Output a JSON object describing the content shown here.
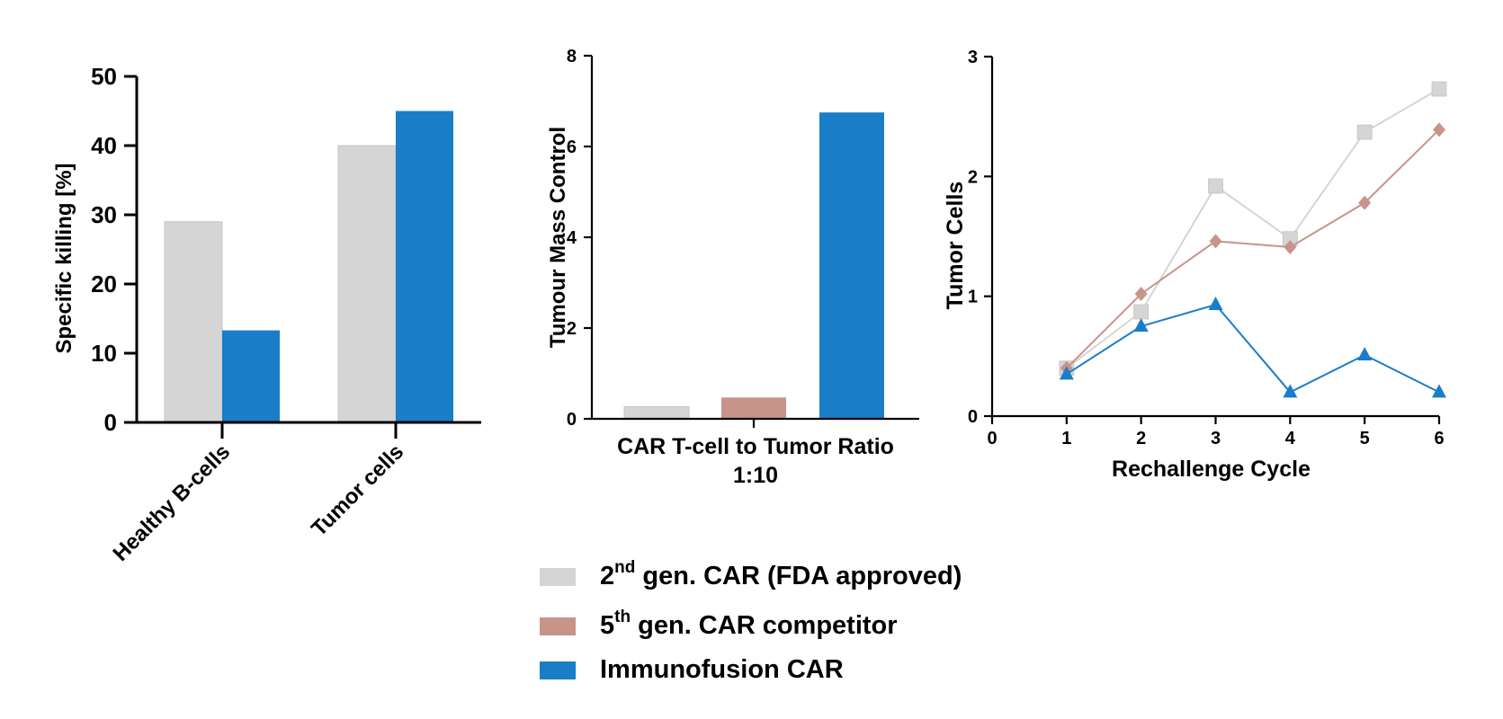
{
  "colors": {
    "gen2": "#d5d5d5",
    "gen5": "#c8948a",
    "immuno": "#1a7dc7",
    "axis": "#000000"
  },
  "legend": [
    {
      "sup_prefix": "2",
      "sup": "nd",
      "label": " gen. CAR (FDA approved)",
      "color": "#d5d5d5"
    },
    {
      "sup_prefix": "5",
      "sup": "th",
      "label": " gen. CAR competitor",
      "color": "#c8948a"
    },
    {
      "sup_prefix": "",
      "sup": "",
      "label": "Immunofusion CAR",
      "color": "#1a7dc7"
    }
  ],
  "chart_data": [
    {
      "type": "bar",
      "categories": [
        "Healthy B-cells",
        "Tumor cells"
      ],
      "series": [
        {
          "values": [
            29,
            40
          ],
          "color": "#d5d5d5"
        },
        {
          "values": [
            13.3,
            45
          ],
          "color": "#1a7dc7"
        }
      ],
      "ylabel": "Specific killing [%]",
      "xlabel": "",
      "ylim": [
        0,
        50
      ],
      "yticks": [
        0,
        10,
        20,
        30,
        40,
        50
      ]
    },
    {
      "type": "bar",
      "categories": [
        "CAR T-cell to Tumor Ratio 1:10"
      ],
      "xlabel_lines": [
        "CAR T-cell to Tumor Ratio",
        "1:10"
      ],
      "series": [
        {
          "values": [
            0.27
          ],
          "color": "#d5d5d5"
        },
        {
          "values": [
            0.47
          ],
          "color": "#c8948a"
        },
        {
          "values": [
            6.75
          ],
          "color": "#1a7dc7"
        }
      ],
      "ylabel": "Tumour Mass Control",
      "ylim": [
        0,
        8
      ],
      "yticks": [
        0,
        2,
        4,
        6,
        8
      ]
    },
    {
      "type": "line",
      "x": [
        1,
        2,
        3,
        4,
        5,
        6
      ],
      "xticks": [
        0,
        1,
        2,
        3,
        4,
        5,
        6
      ],
      "series": [
        {
          "values": [
            0.4,
            0.87,
            1.92,
            1.48,
            2.37,
            2.73
          ],
          "color": "#d5d5d5",
          "marker": "square"
        },
        {
          "values": [
            0.4,
            1.02,
            1.46,
            1.41,
            1.78,
            2.39
          ],
          "color": "#c8948a",
          "marker": "diamond"
        },
        {
          "values": [
            0.35,
            0.75,
            0.93,
            0.2,
            0.51,
            0.2
          ],
          "color": "#1a7dc7",
          "marker": "triangle"
        }
      ],
      "xlabel": "Rechallenge Cycle",
      "ylabel": "Tumor Cells",
      "xlim": [
        0,
        6
      ],
      "ylim": [
        0,
        3
      ],
      "yticks": [
        0,
        1,
        2,
        3
      ]
    }
  ]
}
